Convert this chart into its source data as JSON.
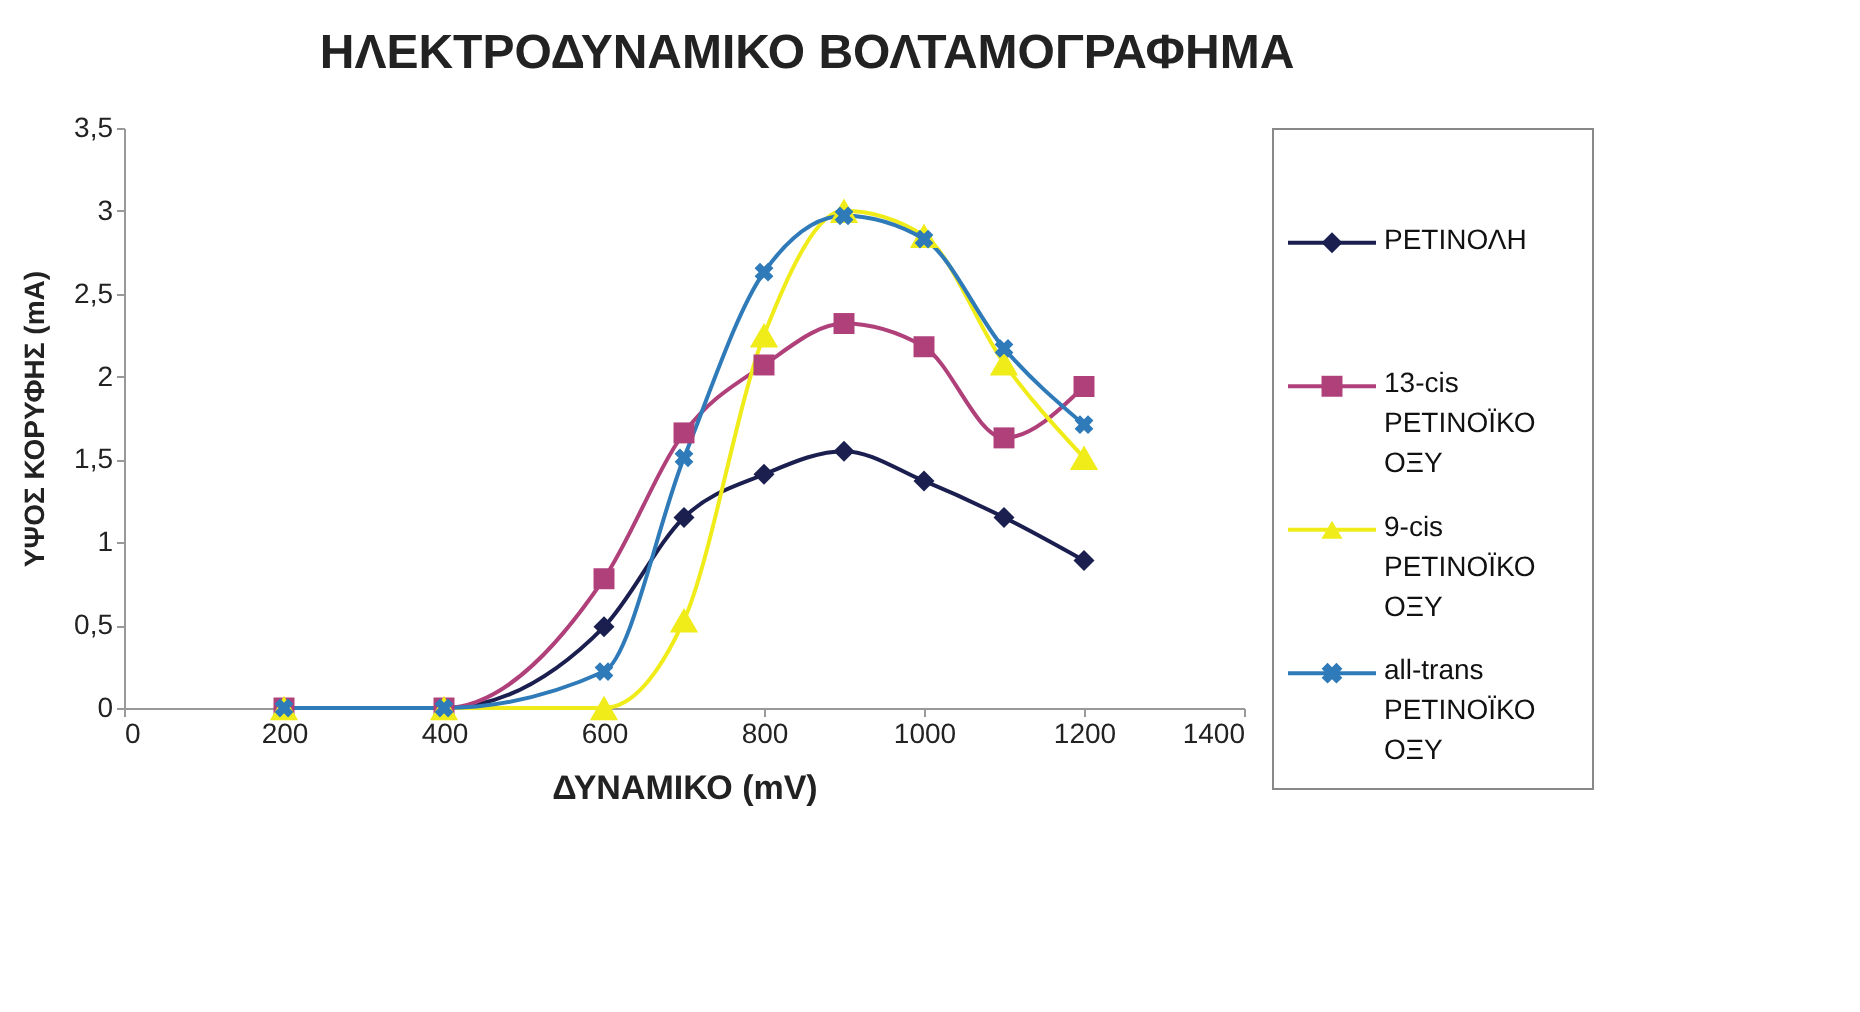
{
  "chart_data": {
    "type": "line",
    "title": "ΗΛΕΚΤΡΟΔΥΝΑΜΙΚΟ ΒΟΛΤΑΜΟΓΡΑΦΗΜΑ",
    "xlabel": "ΔΥΝΑΜΙΚΟ (mV)",
    "ylabel": "ΥΨΟΣ ΚΟΡΥΦΗΣ (mA)",
    "x": [
      200,
      400,
      600,
      700,
      800,
      900,
      1000,
      1100,
      1200
    ],
    "series": [
      {
        "name": "ΡΕΤΙΝΟΛΗ",
        "color": "#1b1f4f",
        "marker": "diamond",
        "values": [
          0,
          0,
          0.49,
          1.15,
          1.41,
          1.55,
          1.37,
          1.15,
          0.89
        ]
      },
      {
        "name": "13-cis ΡΕΤΙΝΟΪΚΟ ΟΞΥ",
        "color": "#b0407a",
        "marker": "square",
        "values": [
          0,
          0,
          0.78,
          1.66,
          2.07,
          2.32,
          2.18,
          1.63,
          1.94
        ]
      },
      {
        "name": "9-cis ΡΕΤΙΝΟΪΚΟ ΟΞΥ",
        "color": "#f0ec1a",
        "marker": "triangle",
        "values": [
          0,
          0,
          0,
          0.53,
          2.25,
          3.0,
          2.85,
          2.08,
          1.51
        ]
      },
      {
        "name": "all-trans ΡΕΤΙΝΟΪΚΟ ΟΞΥ",
        "color": "#2f7ab8",
        "marker": "cross",
        "values": [
          0,
          0,
          0.22,
          1.51,
          2.63,
          2.97,
          2.83,
          2.17,
          1.71
        ]
      }
    ],
    "xlim": [
      0,
      1400
    ],
    "xticks": [
      0,
      200,
      400,
      600,
      800,
      1000,
      1200,
      1400
    ],
    "ylim": [
      0,
      3.5
    ],
    "yticks": [
      0,
      {
        "value": 0.5,
        "label": "0,5"
      },
      1,
      {
        "value": 1.5,
        "label": "1,5"
      },
      2,
      {
        "value": 2.5,
        "label": "2,5"
      },
      3,
      {
        "value": 3.5,
        "label": "3,5"
      }
    ],
    "grid": false,
    "legend": "right",
    "line_style": "solid"
  }
}
